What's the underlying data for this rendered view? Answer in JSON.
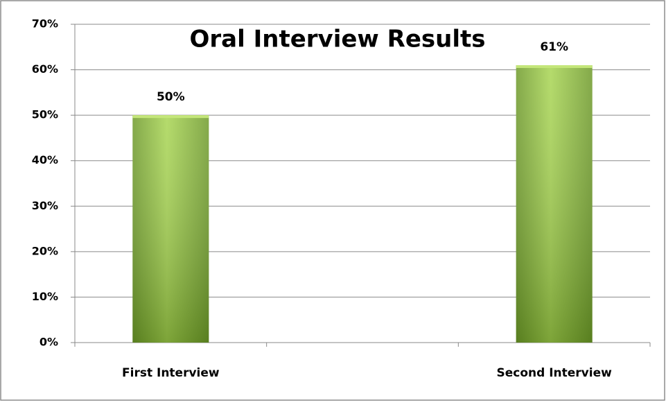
{
  "chart_data": {
    "type": "bar",
    "title": "Oral Interview Results",
    "categories": [
      "First Interview",
      null,
      "Second Interview"
    ],
    "values": [
      50,
      null,
      61
    ],
    "value_labels": [
      "50%",
      null,
      "61%"
    ],
    "color": "#8fbf3a",
    "ylim": [
      0,
      70
    ],
    "yticks": [
      {
        "value": 0,
        "label": "0%"
      },
      {
        "value": 10,
        "label": "10%"
      },
      {
        "value": 20,
        "label": "20%"
      },
      {
        "value": 30,
        "label": "30%"
      },
      {
        "value": 40,
        "label": "40%"
      },
      {
        "value": 50,
        "label": "50%"
      },
      {
        "value": 60,
        "label": "60%"
      },
      {
        "value": 70,
        "label": "70%"
      }
    ],
    "grid": true
  }
}
